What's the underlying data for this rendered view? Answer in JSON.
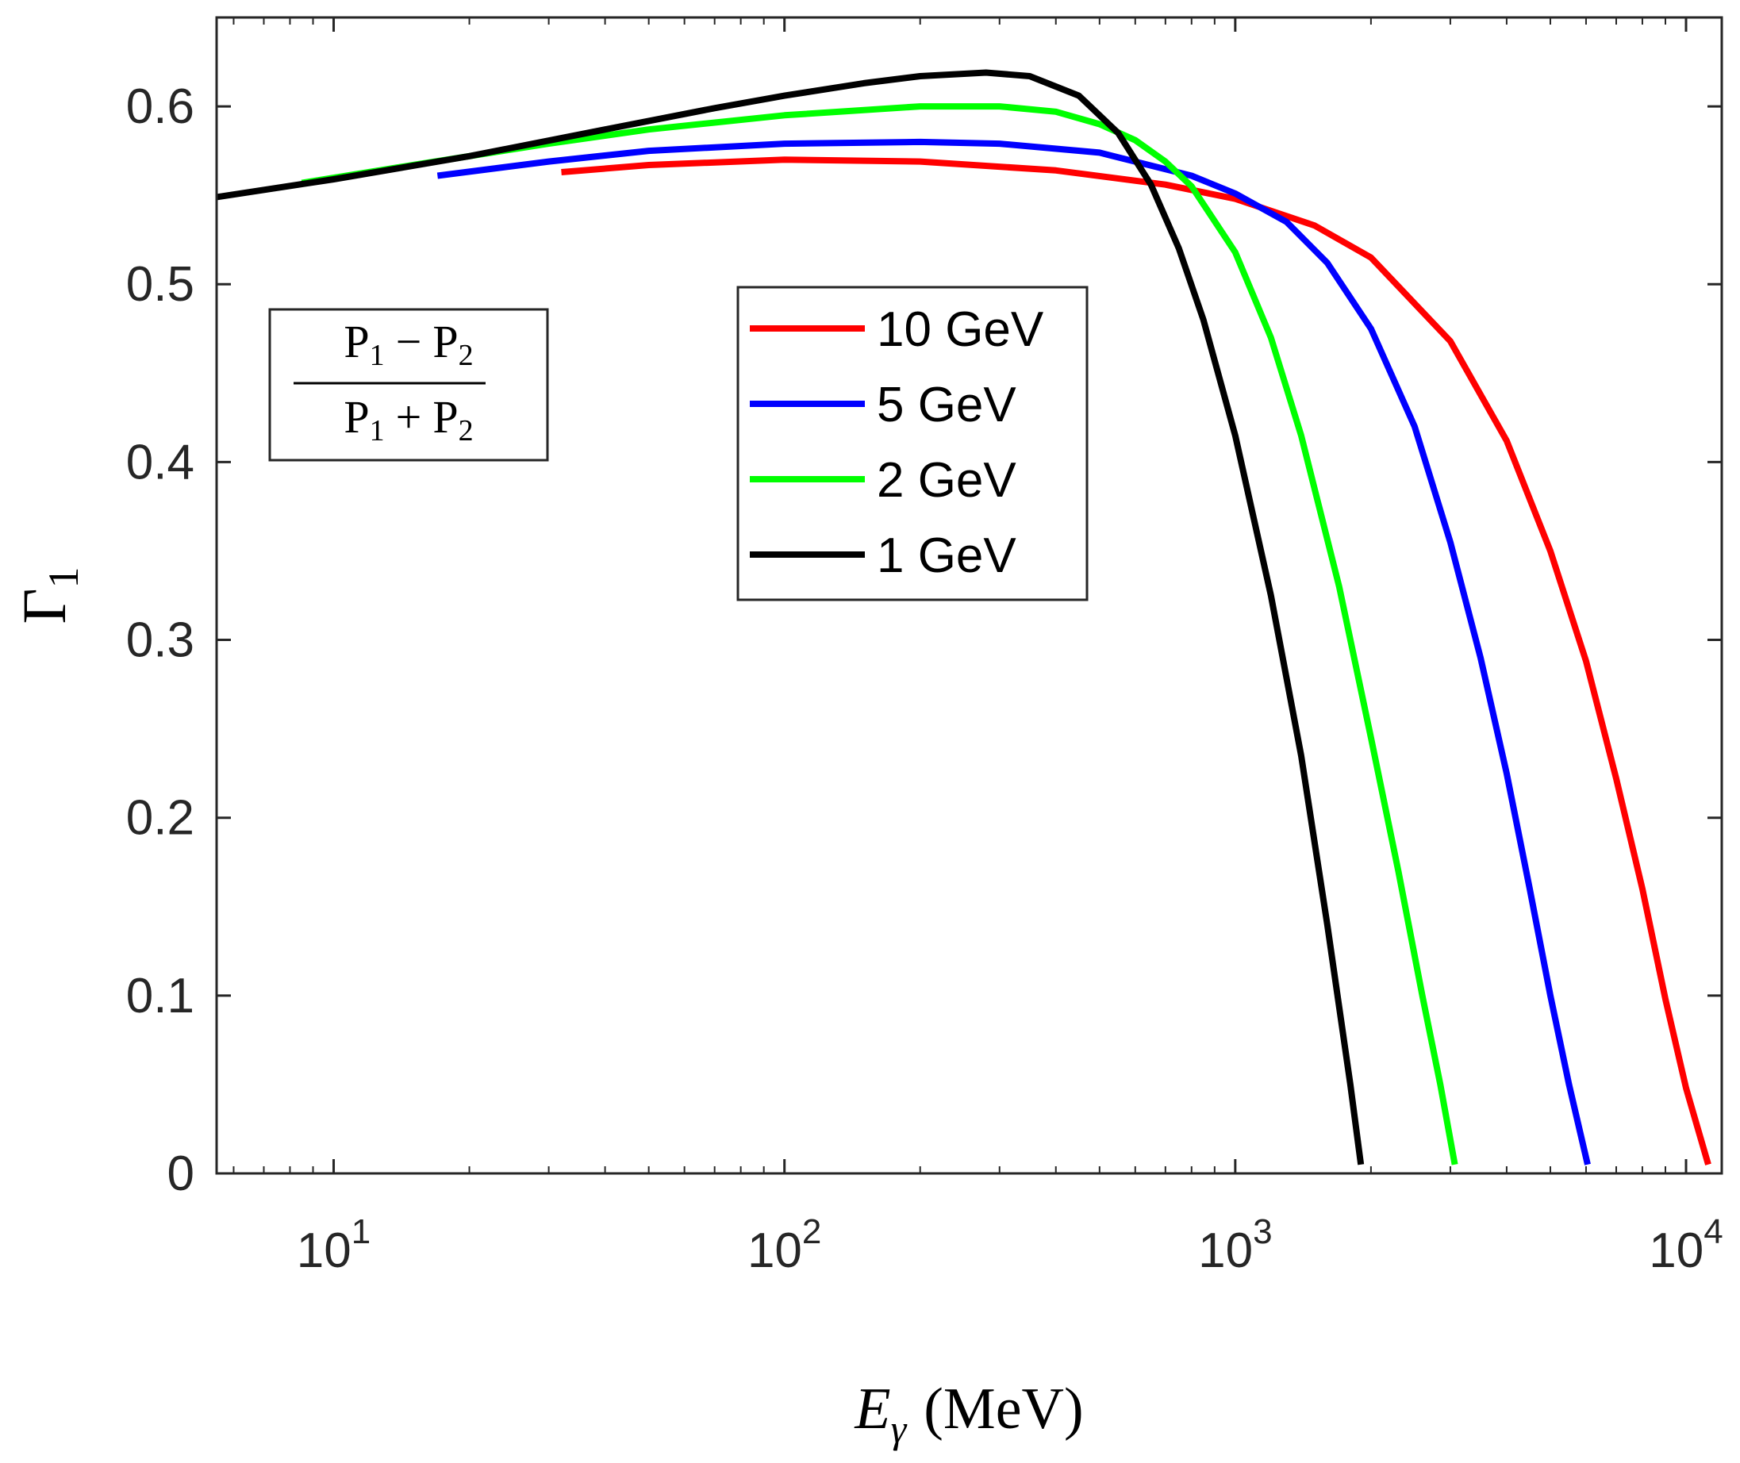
{
  "chart_data": {
    "type": "line",
    "title": "",
    "xscale": "log",
    "xlim": [
      5.5,
      12000
    ],
    "ylim": [
      0,
      0.65
    ],
    "xlabel": {
      "main": "E",
      "sub": "γ",
      "unit": "(MeV)"
    },
    "ylabel": {
      "main": "Γ",
      "sub": "1"
    },
    "xticks": [
      {
        "value": 10,
        "base": "10",
        "exp": "1"
      },
      {
        "value": 100,
        "base": "10",
        "exp": "2"
      },
      {
        "value": 1000,
        "base": "10",
        "exp": "3"
      },
      {
        "value": 10000,
        "base": "10",
        "exp": "4"
      }
    ],
    "yticks": [
      {
        "value": 0,
        "label": "0"
      },
      {
        "value": 0.1,
        "label": "0.1"
      },
      {
        "value": 0.2,
        "label": "0.2"
      },
      {
        "value": 0.3,
        "label": "0.3"
      },
      {
        "value": 0.4,
        "label": "0.4"
      },
      {
        "value": 0.5,
        "label": "0.5"
      },
      {
        "value": 0.6,
        "label": "0.6"
      }
    ],
    "grid": false,
    "legend_position": "upper-center",
    "annotation": {
      "numerator": {
        "a": "P",
        "a_sub": "1",
        "op": "−",
        "b": "P",
        "b_sub": "2"
      },
      "denominator": {
        "a": "P",
        "a_sub": "1",
        "op": "+",
        "b": "P",
        "b_sub": "2"
      }
    },
    "series": [
      {
        "name": "10 GeV",
        "color": "#ff0000",
        "x": [
          32,
          50,
          100,
          200,
          400,
          700,
          1000,
          1500,
          2000,
          3000,
          4000,
          5000,
          6000,
          7000,
          8000,
          9000,
          10000,
          11200
        ],
        "y": [
          0.563,
          0.567,
          0.57,
          0.569,
          0.564,
          0.556,
          0.548,
          0.533,
          0.515,
          0.468,
          0.412,
          0.35,
          0.288,
          0.222,
          0.16,
          0.098,
          0.048,
          0.005
        ]
      },
      {
        "name": "5 GeV",
        "color": "#0000ff",
        "x": [
          17,
          30,
          50,
          100,
          200,
          300,
          500,
          800,
          1000,
          1300,
          1600,
          2000,
          2500,
          3000,
          3500,
          4000,
          4500,
          5000,
          5500,
          6050
        ],
        "y": [
          0.561,
          0.569,
          0.575,
          0.579,
          0.58,
          0.579,
          0.574,
          0.561,
          0.551,
          0.535,
          0.512,
          0.475,
          0.42,
          0.355,
          0.29,
          0.225,
          0.16,
          0.1,
          0.05,
          0.005
        ]
      },
      {
        "name": "2 GeV",
        "color": "#00ff00",
        "x": [
          8.5,
          15,
          30,
          50,
          100,
          200,
          300,
          400,
          500,
          600,
          700,
          800,
          1000,
          1200,
          1400,
          1700,
          2000,
          2300,
          2600,
          2850,
          3070
        ],
        "y": [
          0.557,
          0.567,
          0.579,
          0.587,
          0.595,
          0.6,
          0.6,
          0.597,
          0.59,
          0.581,
          0.569,
          0.555,
          0.518,
          0.47,
          0.415,
          0.33,
          0.245,
          0.17,
          0.1,
          0.05,
          0.005
        ]
      },
      {
        "name": "1 GeV",
        "color": "#000000",
        "x": [
          5.5,
          10,
          20,
          40,
          70,
          100,
          150,
          200,
          280,
          350,
          450,
          550,
          650,
          750,
          850,
          1000,
          1200,
          1400,
          1600,
          1800,
          1900
        ],
        "y": [
          0.549,
          0.559,
          0.572,
          0.587,
          0.599,
          0.606,
          0.613,
          0.617,
          0.619,
          0.617,
          0.606,
          0.585,
          0.556,
          0.52,
          0.48,
          0.415,
          0.325,
          0.235,
          0.14,
          0.05,
          0.005
        ]
      }
    ]
  }
}
